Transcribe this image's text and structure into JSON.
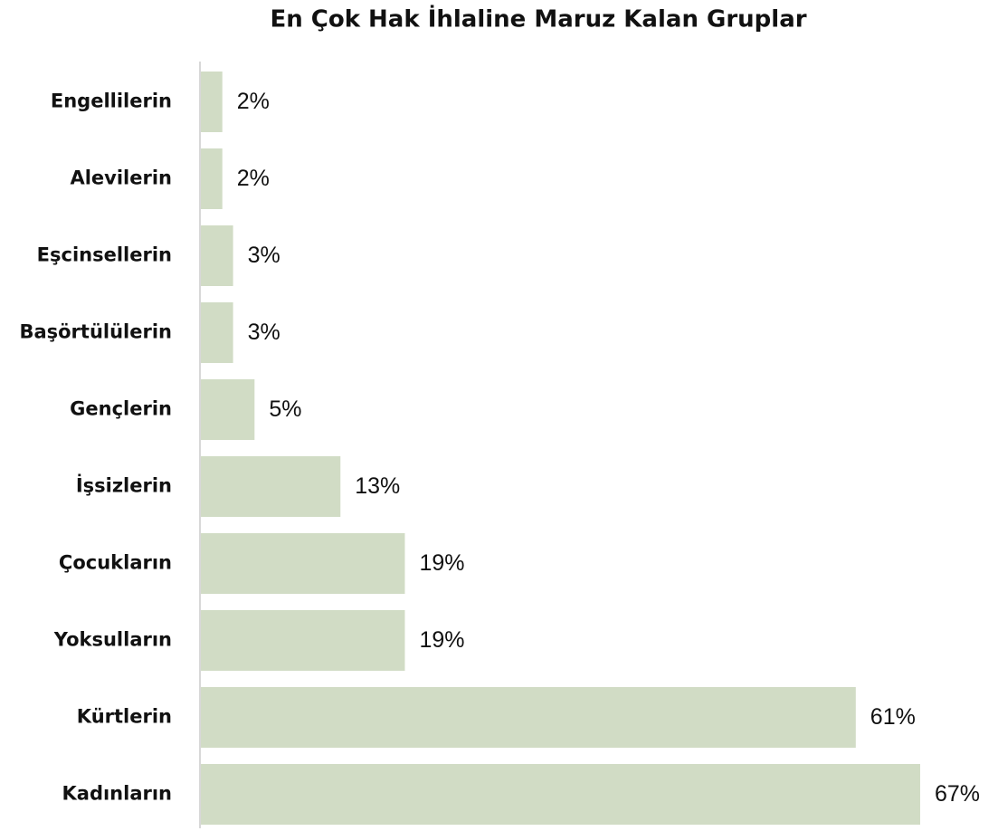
{
  "chart_data": {
    "type": "bar",
    "orientation": "horizontal",
    "title": "En Çok Hak İhlaline Maruz Kalan Gruplar",
    "categories": [
      "Engellilerin",
      "Alevilerin",
      "Eşcinsellerin",
      "Başörtülülerin",
      "Gençlerin",
      "İşsizlerin",
      "Çocukların",
      "Yoksulların",
      "Kürtlerin",
      "Kadınların"
    ],
    "values": [
      2,
      2,
      3,
      3,
      5,
      13,
      19,
      19,
      61,
      67
    ],
    "value_labels": [
      "2%",
      "2%",
      "3%",
      "3%",
      "5%",
      "13%",
      "19%",
      "19%",
      "61%",
      "67%"
    ],
    "color": "#d1dcc5"
  }
}
